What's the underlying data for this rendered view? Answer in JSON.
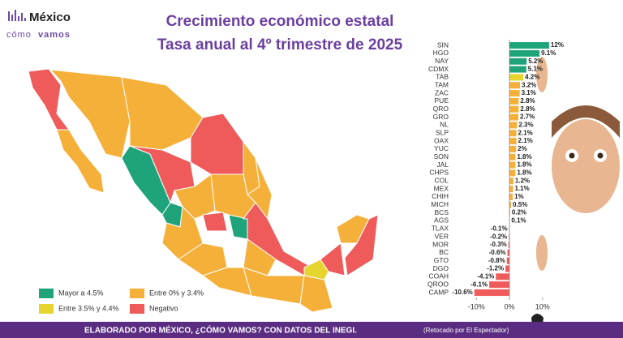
{
  "logo": {
    "name": "México",
    "tag_1": "cómo",
    "tag_2": "vamos"
  },
  "chart_data": {
    "type": "bar",
    "orientation": "horizontal",
    "title": "Crecimiento económico estatal",
    "subtitle": "Tasa anual al 4º trimestre de 2025",
    "categories": [
      "SIN",
      "HGO",
      "NAY",
      "CDMX",
      "TAB",
      "TAM",
      "ZAC",
      "PUE",
      "QRO",
      "GRO",
      "NL",
      "SLP",
      "OAX",
      "YUC",
      "SON",
      "JAL",
      "CHPS",
      "COL",
      "MEX",
      "CHIH",
      "MICH",
      "BCS",
      "AGS",
      "TLAX",
      "VER",
      "MOR",
      "BC",
      "GTO",
      "DGO",
      "COAH",
      "QROO",
      "CAMP"
    ],
    "values": [
      12,
      9.1,
      5.2,
      5.1,
      4.2,
      3.2,
      3.1,
      2.8,
      2.8,
      2.7,
      2.3,
      2.1,
      2.1,
      2,
      1.8,
      1.8,
      1.8,
      1.2,
      1.1,
      1,
      0.5,
      0.2,
      0.1,
      -0.1,
      -0.2,
      -0.3,
      -0.6,
      -0.8,
      -1.2,
      -4.1,
      -6.1,
      -10.6
    ],
    "value_labels": [
      "12%",
      "9.1%",
      "5.2%",
      "5.1%",
      "4.2%",
      "3.2%",
      "3.1%",
      "2.8%",
      "2.8%",
      "2.7%",
      "2.3%",
      "2.1%",
      "2.1%",
      "2%",
      "1.8%",
      "1.8%",
      "1.8%",
      "1.2%",
      "1.1%",
      "1%",
      "0.5%",
      "0.2%",
      "0.1%",
      "-0.1%",
      "-0.2%",
      "-0.3%",
      "-0.6%",
      "-0.8%",
      "-1.2%",
      "-4.1%",
      "-6.1%",
      "-10.6%"
    ],
    "colors": [
      "#1fa37a",
      "#1fa37a",
      "#1fa37a",
      "#1fa37a",
      "#e6d52e",
      "#f5b03a",
      "#f5b03a",
      "#f5b03a",
      "#f5b03a",
      "#f5b03a",
      "#f5b03a",
      "#f5b03a",
      "#f5b03a",
      "#f5b03a",
      "#f5b03a",
      "#f5b03a",
      "#f5b03a",
      "#f5b03a",
      "#f5b03a",
      "#f5b03a",
      "#f5b03a",
      "#f5b03a",
      "#f5b03a",
      "#ef5a5a",
      "#ef5a5a",
      "#ef5a5a",
      "#ef5a5a",
      "#ef5a5a",
      "#ef5a5a",
      "#ef5a5a",
      "#ef5a5a",
      "#ef5a5a"
    ],
    "xlim": [
      -13,
      13
    ],
    "xticks": [
      {
        "value": -10,
        "label": "-10%"
      },
      {
        "value": 0,
        "label": "0%"
      },
      {
        "value": 10,
        "label": "10%"
      }
    ]
  },
  "map_legend": [
    {
      "label": "Mayor a 4.5%",
      "color": "#1fa37a"
    },
    {
      "label": "Entre 0% y 3.4%",
      "color": "#f5b03a"
    },
    {
      "label": "Entre 3.5% y 4.4%",
      "color": "#e6d52e"
    },
    {
      "label": "Negativo",
      "color": "#ef5a5a"
    }
  ],
  "footer": {
    "source": "ELABORADO POR MÉXICO, ¿CÓMO VAMOS? CON DATOS DEL INEGI.",
    "credit": "(Retocado por El Espectador)"
  }
}
